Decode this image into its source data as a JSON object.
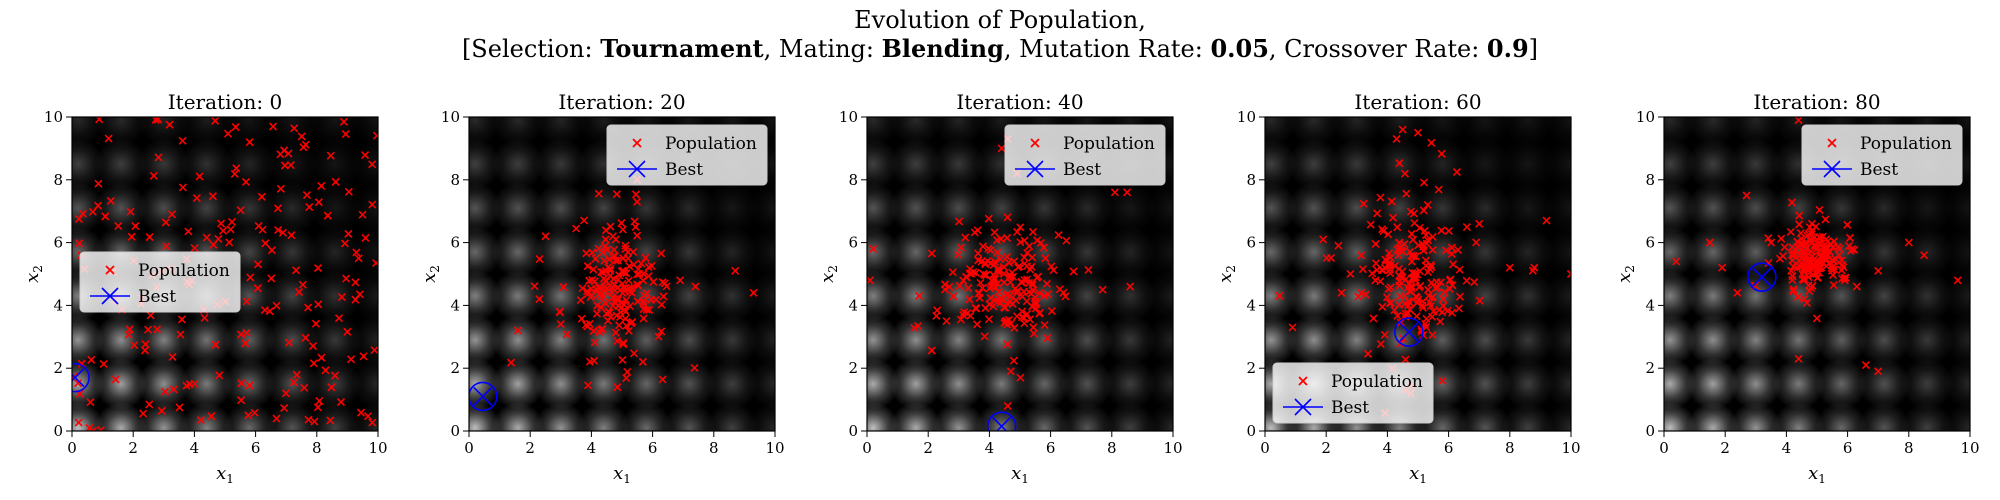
{
  "figure": {
    "title_line1": "Evolution of Population,",
    "title_line2": {
      "selection_label": "[Selection: ",
      "selection_value": "Tournament",
      "mating_label": ", Mating: ",
      "mating_value": "Blending",
      "mutation_label": ", Mutation Rate: ",
      "mutation_value": "0.05",
      "crossover_label": ", Crossover Rate: ",
      "crossover_value": "0.9",
      "close": "]"
    }
  },
  "colors": {
    "population": "#ff0000",
    "best": "#0000ff",
    "background": "#000000"
  },
  "chart_data": [
    {
      "type": "scatter",
      "title": "Iteration: 0",
      "xlabel": "x1",
      "ylabel": "x2",
      "xlim": [
        0,
        10
      ],
      "ylim": [
        0,
        10
      ],
      "xticks": [
        "0",
        "2",
        "4",
        "6",
        "8",
        "10"
      ],
      "yticks": [
        "0",
        "2",
        "4",
        "6",
        "8",
        "10"
      ],
      "legend": {
        "location": "center-left",
        "entries": [
          "Population",
          "Best"
        ]
      },
      "best": [
        0.1,
        1.7
      ],
      "population": {
        "center": [
          5,
          5
        ],
        "spread": [
          5,
          5
        ],
        "count": 200,
        "uniform": true,
        "seed": 11
      }
    },
    {
      "type": "scatter",
      "title": "Iteration: 20",
      "xlabel": "x1",
      "ylabel": "x2",
      "xlim": [
        0,
        10
      ],
      "ylim": [
        0,
        10
      ],
      "xticks": [
        "0",
        "2",
        "4",
        "6",
        "8",
        "10"
      ],
      "yticks": [
        "0",
        "2",
        "4",
        "6",
        "8",
        "10"
      ],
      "legend": {
        "location": "top-right",
        "entries": [
          "Population",
          "Best"
        ]
      },
      "best": [
        0.45,
        1.1
      ],
      "population": {
        "center": [
          4.75,
          4.5
        ],
        "spread": [
          0.7,
          0.9
        ],
        "count": 190,
        "uniform": false,
        "seed": 23,
        "outliers": [
          [
            1.6,
            3.2
          ],
          [
            2.5,
            6.2
          ],
          [
            8.7,
            5.1
          ],
          [
            9.3,
            4.4
          ],
          [
            7.4,
            4.6
          ],
          [
            2.3,
            4.2
          ],
          [
            3.0,
            3.4
          ],
          [
            6.9,
            4.8
          ]
        ]
      }
    },
    {
      "type": "scatter",
      "title": "Iteration: 40",
      "xlabel": "x1",
      "ylabel": "x2",
      "xlim": [
        0,
        10
      ],
      "ylim": [
        0,
        10
      ],
      "xticks": [
        "0",
        "2",
        "4",
        "6",
        "8",
        "10"
      ],
      "yticks": [
        "0",
        "2",
        "4",
        "6",
        "8",
        "10"
      ],
      "legend": {
        "location": "top-right",
        "entries": [
          "Population",
          "Best"
        ]
      },
      "best": [
        4.4,
        0.15
      ],
      "population": {
        "center": [
          4.6,
          4.7
        ],
        "spread": [
          0.8,
          0.8
        ],
        "count": 190,
        "uniform": false,
        "seed": 37,
        "outliers": [
          [
            0.2,
            5.8
          ],
          [
            0.1,
            4.8
          ],
          [
            8.1,
            7.6
          ],
          [
            8.5,
            7.6
          ],
          [
            7.7,
            4.5
          ],
          [
            8.6,
            4.6
          ],
          [
            4.6,
            9.3
          ],
          [
            4.4,
            9.0
          ],
          [
            4.9,
            8.2
          ],
          [
            4.7,
            1.9
          ],
          [
            4.6,
            0.8
          ],
          [
            1.7,
            4.3
          ],
          [
            2.6,
            3.5
          ]
        ]
      }
    },
    {
      "type": "scatter",
      "title": "Iteration: 60",
      "xlabel": "x1",
      "ylabel": "x2",
      "xlim": [
        0,
        10
      ],
      "ylim": [
        0,
        10
      ],
      "xticks": [
        "0",
        "2",
        "4",
        "6",
        "8",
        "10"
      ],
      "yticks": [
        "0",
        "2",
        "4",
        "6",
        "8",
        "10"
      ],
      "legend": {
        "location": "bottom-left",
        "entries": [
          "Population",
          "Best"
        ]
      },
      "best": [
        4.7,
        3.15
      ],
      "population": {
        "center": [
          4.8,
          5.0
        ],
        "spread": [
          0.8,
          1.0
        ],
        "count": 200,
        "uniform": false,
        "seed": 53,
        "outliers": [
          [
            0.9,
            3.3
          ],
          [
            1.9,
            6.1
          ],
          [
            2.4,
            5.9
          ],
          [
            8.0,
            5.2
          ],
          [
            8.8,
            5.2
          ],
          [
            9.2,
            6.7
          ],
          [
            10.0,
            5.0
          ],
          [
            4.5,
            9.6
          ],
          [
            5.0,
            9.5
          ],
          [
            4.3,
            9.3
          ],
          [
            5.8,
            1.6
          ],
          [
            4.6,
            1.3
          ],
          [
            2.5,
            4.4
          ],
          [
            7.0,
            6.6
          ]
        ]
      }
    },
    {
      "type": "scatter",
      "title": "Iteration: 80",
      "xlabel": "x1",
      "ylabel": "x2",
      "xlim": [
        0,
        10
      ],
      "ylim": [
        0,
        10
      ],
      "xticks": [
        "0",
        "2",
        "4",
        "6",
        "8",
        "10"
      ],
      "yticks": [
        "0",
        "2",
        "4",
        "6",
        "8",
        "10"
      ],
      "legend": {
        "location": "top-right",
        "entries": [
          "Population",
          "Best"
        ]
      },
      "best": [
        3.2,
        4.9
      ],
      "population": {
        "center": [
          4.9,
          5.6
        ],
        "spread": [
          0.5,
          0.45
        ],
        "count": 180,
        "uniform": false,
        "seed": 71,
        "outliers": [
          [
            0.4,
            5.4
          ],
          [
            1.5,
            6.0
          ],
          [
            2.4,
            4.4
          ],
          [
            1.9,
            5.2
          ],
          [
            2.7,
            7.5
          ],
          [
            6.6,
            2.1
          ],
          [
            7.0,
            1.9
          ],
          [
            8.0,
            6.0
          ],
          [
            8.5,
            5.6
          ],
          [
            9.6,
            4.8
          ],
          [
            4.4,
            2.3
          ],
          [
            6.3,
            4.6
          ],
          [
            7.0,
            5.1
          ],
          [
            4.4,
            9.9
          ],
          [
            3.5,
            6.0
          ]
        ]
      }
    }
  ]
}
